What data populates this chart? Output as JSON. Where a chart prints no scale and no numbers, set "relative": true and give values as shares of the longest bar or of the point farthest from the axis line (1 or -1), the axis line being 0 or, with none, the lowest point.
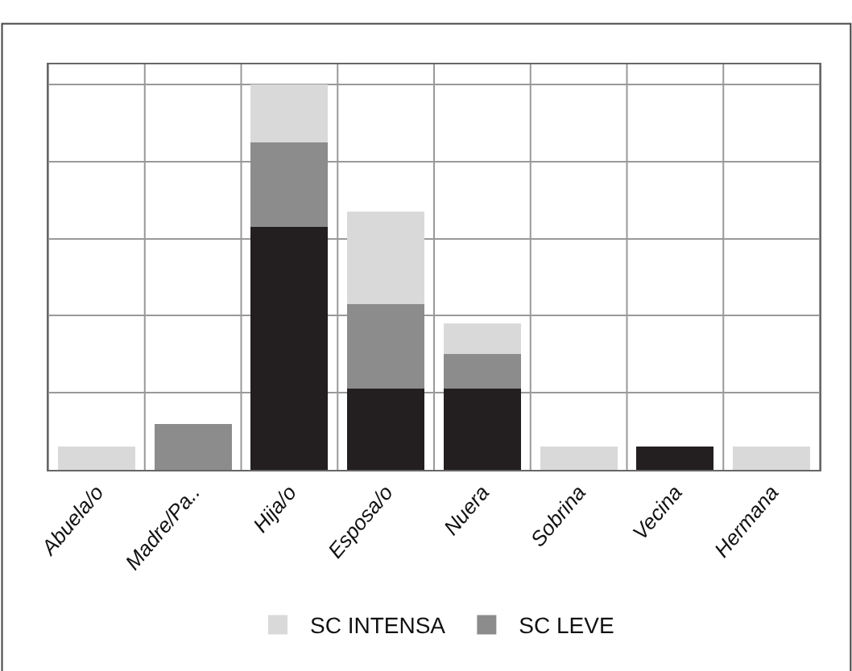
{
  "chart_data": {
    "type": "bar",
    "stacked": true,
    "relative": true,
    "grid": true,
    "legend": "bottom",
    "categories": [
      "Abuela/o",
      "Madre/Pa..",
      "Hija/o",
      "Esposa/o",
      "Nuera",
      "Sobrina",
      "Vecina",
      "Hermana"
    ],
    "series": [
      {
        "color": "#231f20",
        "values": [
          0,
          0,
          0.63,
          0.21,
          0.21,
          0,
          0.06,
          0
        ]
      },
      {
        "name": "SC LEVE",
        "color": "#8c8c8c",
        "values": [
          0,
          0.12,
          0.22,
          0.22,
          0.09,
          0,
          0,
          0
        ]
      },
      {
        "name": "SC INTENSA",
        "color": "#d9d9d9",
        "values": [
          0.06,
          0,
          0.15,
          0.24,
          0.08,
          0.06,
          0,
          0.06
        ]
      }
    ]
  }
}
